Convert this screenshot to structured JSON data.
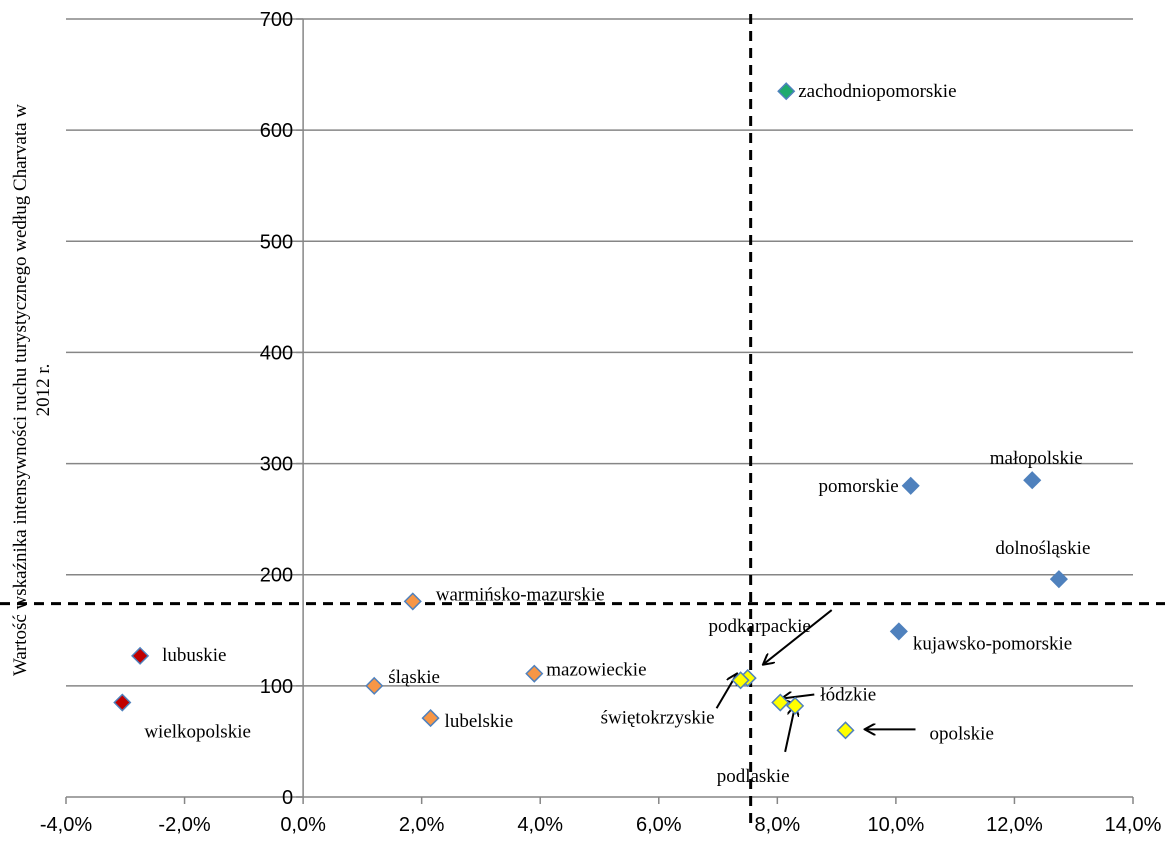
{
  "chart_data": {
    "type": "scatter",
    "title": "",
    "xlabel": "",
    "ylabel": "Wartość wskaźnika intensywności ruchu turystycznego według Charvata w 2012 r.",
    "ylabel_lines": [
      "Wartość wskaźnika intensywności ruchu turystycznego według Charvata w",
      "2012 r."
    ],
    "xlim": [
      -4.0,
      14.0
    ],
    "ylim": [
      0,
      700
    ],
    "x_ticks": [
      -4,
      -2,
      0,
      2,
      4,
      6,
      8,
      10,
      12,
      14
    ],
    "x_tick_labels": [
      "-4,0%",
      "-2,0%",
      "0,0%",
      "2,0%",
      "4,0%",
      "6,0%",
      "8,0%",
      "10,0%",
      "12,0%",
      "14,0%"
    ],
    "y_ticks": [
      0,
      100,
      200,
      300,
      400,
      500,
      600,
      700
    ],
    "y_tick_labels": [
      "0",
      "100",
      "200",
      "300",
      "400",
      "500",
      "600",
      "700"
    ],
    "grid": "horizontal",
    "reference_lines": {
      "x": 7.55,
      "y": 174
    },
    "points": [
      {
        "name": "zachodniopomorskie",
        "x": 8.15,
        "y": 635,
        "color": "#1faa6e"
      },
      {
        "name": "małopolskie",
        "x": 12.3,
        "y": 285,
        "color": "#4f81bd"
      },
      {
        "name": "pomorskie",
        "x": 10.25,
        "y": 280,
        "color": "#4f81bd"
      },
      {
        "name": "dolnośląskie",
        "x": 12.75,
        "y": 196,
        "color": "#4f81bd"
      },
      {
        "name": "kujawsko-pomorskie",
        "x": 10.05,
        "y": 149,
        "color": "#4f81bd"
      },
      {
        "name": "warmińsko-mazurskie",
        "x": 1.85,
        "y": 176,
        "color": "#f79646"
      },
      {
        "name": "lubuskie",
        "x": -2.75,
        "y": 127,
        "color": "#c00000"
      },
      {
        "name": "wielkopolskie",
        "x": -3.05,
        "y": 85,
        "color": "#c00000"
      },
      {
        "name": "śląskie",
        "x": 1.2,
        "y": 100,
        "color": "#f79646"
      },
      {
        "name": "lubelskie",
        "x": 2.15,
        "y": 71,
        "color": "#f79646"
      },
      {
        "name": "mazowieckie",
        "x": 3.9,
        "y": 111,
        "color": "#f79646"
      },
      {
        "name": "podkarpackie",
        "x": 7.5,
        "y": 107,
        "color": "#ffff00"
      },
      {
        "name": "świętokrzyskie",
        "x": 7.38,
        "y": 105,
        "color": "#ffff00"
      },
      {
        "name": "łódzkie",
        "x": 8.05,
        "y": 85,
        "color": "#ffff00"
      },
      {
        "name": "podlaskie",
        "x": 8.3,
        "y": 82,
        "color": "#ffff00"
      },
      {
        "name": "opolskie",
        "x": 9.15,
        "y": 60,
        "color": "#ffff00"
      }
    ]
  }
}
